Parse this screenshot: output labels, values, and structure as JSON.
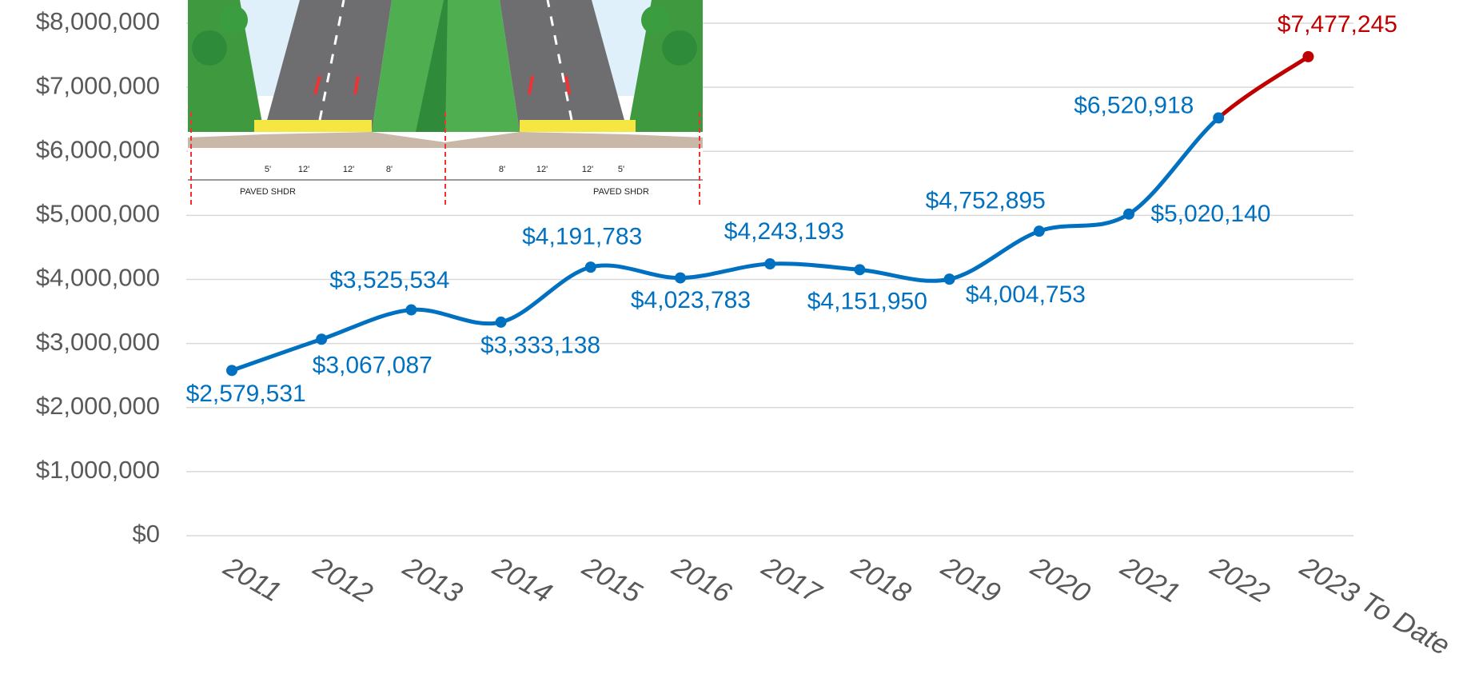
{
  "chart_data": {
    "type": "line",
    "categories": [
      "2011",
      "2012",
      "2013",
      "2014",
      "2015",
      "2016",
      "2017",
      "2018",
      "2019",
      "2020",
      "2021",
      "2022",
      "2023 To Date"
    ],
    "values": [
      2579531,
      3067087,
      3525534,
      3333138,
      4191783,
      4023783,
      4243193,
      4151950,
      4004753,
      4752895,
      5020140,
      6520918,
      7477245
    ],
    "value_labels": [
      "$2,579,531",
      "$3,067,087",
      "$3,525,534",
      "$3,333,138",
      "$4,191,783",
      "$4,023,783",
      "$4,243,193",
      "$4,151,950",
      "$4,004,753",
      "$4,752,895",
      "$5,020,140",
      "$6,520,918",
      "$7,477,245"
    ],
    "color": "#0070c0",
    "last_segment_color": "#c00000",
    "ylim": [
      0,
      8000000
    ],
    "yticks": [
      {
        "value": 0,
        "label": "$0"
      },
      {
        "value": 1000000,
        "label": "$1,000,000"
      },
      {
        "value": 2000000,
        "label": "$2,000,000"
      },
      {
        "value": 3000000,
        "label": "$3,000,000"
      },
      {
        "value": 4000000,
        "label": "$4,000,000"
      },
      {
        "value": 5000000,
        "label": "$5,000,000"
      },
      {
        "value": 6000000,
        "label": "$6,000,000"
      },
      {
        "value": 7000000,
        "label": "$7,000,000"
      },
      {
        "value": 8000000,
        "label": "$8,000,000"
      }
    ],
    "grid": true
  },
  "illustration": {
    "dimensions": [
      "5'",
      "12'",
      "12'",
      "8'",
      "8'",
      "12'",
      "12'",
      "5'"
    ],
    "shoulder_label": "PAVED SHDR"
  }
}
